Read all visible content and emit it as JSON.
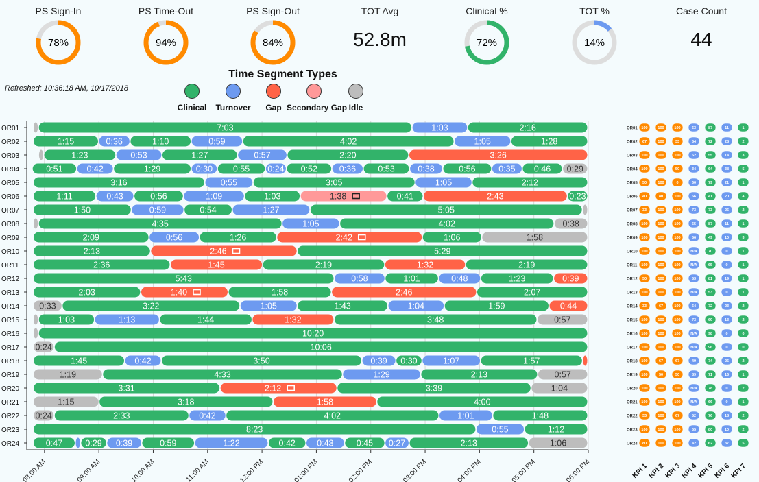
{
  "kpis": [
    {
      "label": "PS Sign-In",
      "value": "78%",
      "pct": 78,
      "color": "#ff8a00",
      "kind": "donut"
    },
    {
      "label": "PS Time-Out",
      "value": "94%",
      "pct": 94,
      "color": "#ff8a00",
      "kind": "donut"
    },
    {
      "label": "PS Sign-Out",
      "value": "84%",
      "pct": 84,
      "color": "#ff8a00",
      "kind": "donut"
    },
    {
      "label": "TOT Avg",
      "value": "52.8m",
      "kind": "text"
    },
    {
      "label": "Clinical %",
      "value": "72%",
      "pct": 72,
      "color": "#32b36a",
      "kind": "donut"
    },
    {
      "label": "TOT %",
      "value": "14%",
      "pct": 14,
      "color": "#6d9af0",
      "kind": "donut"
    },
    {
      "label": "Case Count",
      "value": "44",
      "kind": "text"
    }
  ],
  "refreshed": "Refreshed: 10:36:18 AM, 10/17/2018",
  "legend": {
    "title": "Time Segment Types",
    "items": [
      {
        "label": "Clinical",
        "color": "#32b36a"
      },
      {
        "label": "Turnover",
        "color": "#6d9af0"
      },
      {
        "label": "Gap",
        "color": "#ff6347"
      },
      {
        "label": "Secondary Gap",
        "color": "#ff9999"
      },
      {
        "label": "Idle",
        "color": "#bdbdbd"
      }
    ]
  },
  "colors": {
    "C": "#32b36a",
    "T": "#6d9af0",
    "G": "#ff6347",
    "S": "#ff9999",
    "I": "#bdbdbd",
    "orange": "#ff8a00",
    "green": "#32b36a",
    "blue": "#6d9af0"
  },
  "chart_data": {
    "type": "gantt",
    "x_ticks": [
      "08:00 AM",
      "09:00 AM",
      "10:00 AM",
      "11:00 AM",
      "12:00 PM",
      "01:00 PM",
      "02:00 PM",
      "03:00 PM",
      "04:00 PM",
      "05:00 PM",
      "06:00 PM"
    ],
    "rows": [
      {
        "room": "OR01",
        "start": "07:48",
        "segs": [
          [
            "I",
            ""
          ],
          [
            "C",
            "7:03"
          ],
          [
            "T",
            "1:03"
          ],
          [
            "C",
            "2:16"
          ]
        ]
      },
      {
        "room": "OR02",
        "start": "07:48",
        "segs": [
          [
            "C",
            "1:15"
          ],
          [
            "T",
            "0:36"
          ],
          [
            "C",
            "1:10"
          ],
          [
            "T",
            "0:59"
          ],
          [
            "C",
            "4:02"
          ],
          [
            "T",
            "1:05"
          ],
          [
            "C",
            "1:28"
          ]
        ]
      },
      {
        "room": "OR03",
        "start": "07:54",
        "segs": [
          [
            "I",
            ""
          ],
          [
            "C",
            "1:23"
          ],
          [
            "T",
            "0:53"
          ],
          [
            "C",
            "1:27"
          ],
          [
            "T",
            "0:57"
          ],
          [
            "C",
            "2:20"
          ],
          [
            "G",
            "3:26"
          ]
        ]
      },
      {
        "room": "OR04",
        "start": "07:47",
        "segs": [
          [
            "C",
            "0:51"
          ],
          [
            "T",
            "0:42"
          ],
          [
            "C",
            "1:29"
          ],
          [
            "T",
            "0:30"
          ],
          [
            "C",
            "0:55"
          ],
          [
            "T",
            "0:24"
          ],
          [
            "C",
            "0:52"
          ],
          [
            "T",
            "0:36"
          ],
          [
            "C",
            "0:53"
          ],
          [
            "T",
            "0:38"
          ],
          [
            "C",
            "0:56"
          ],
          [
            "T",
            "0:35"
          ],
          [
            "C",
            "0:46"
          ],
          [
            "I",
            "0:29"
          ]
        ]
      },
      {
        "room": "OR05",
        "start": "07:48",
        "segs": [
          [
            "C",
            "3:16"
          ],
          [
            "T",
            "0:55"
          ],
          [
            "C",
            "3:05"
          ],
          [
            "T",
            "1:05"
          ],
          [
            "C",
            "2:12"
          ]
        ]
      },
      {
        "room": "OR06",
        "start": "07:48",
        "segs": [
          [
            "C",
            "1:11"
          ],
          [
            "T",
            "0:43"
          ],
          [
            "C",
            "0:56"
          ],
          [
            "T",
            "1:09"
          ],
          [
            "C",
            "1:03"
          ],
          [
            "S",
            "1:38",
            true
          ],
          [
            "C",
            "0:41"
          ],
          [
            "G",
            "2:43"
          ],
          [
            "C",
            "0:23"
          ]
        ]
      },
      {
        "room": "OR07",
        "start": "07:48",
        "segs": [
          [
            "C",
            "1:50"
          ],
          [
            "T",
            "0:59"
          ],
          [
            "C",
            "0:54"
          ],
          [
            "T",
            "1:27"
          ],
          [
            "C",
            "5:05"
          ],
          [
            "I",
            ""
          ]
        ]
      },
      {
        "room": "OR08",
        "start": "07:48",
        "segs": [
          [
            "I",
            ""
          ],
          [
            "C",
            "4:35"
          ],
          [
            "T",
            "1:05"
          ],
          [
            "C",
            "4:02"
          ],
          [
            "I",
            "0:38"
          ]
        ]
      },
      {
        "room": "OR09",
        "start": "07:48",
        "segs": [
          [
            "C",
            "2:09"
          ],
          [
            "T",
            "0:56"
          ],
          [
            "C",
            "1:26"
          ],
          [
            "G",
            "2:42",
            true
          ],
          [
            "C",
            "1:06"
          ],
          [
            "I",
            "1:58"
          ]
        ]
      },
      {
        "room": "OR10",
        "start": "07:48",
        "segs": [
          [
            "C",
            "2:13"
          ],
          [
            "G",
            "2:46",
            true
          ],
          [
            "C",
            "5:29"
          ]
        ]
      },
      {
        "room": "OR11",
        "start": "07:48",
        "segs": [
          [
            "C",
            "2:36"
          ],
          [
            "G",
            "1:45"
          ],
          [
            "C",
            "2:19"
          ],
          [
            "G",
            "1:32"
          ],
          [
            "C",
            "2:19"
          ]
        ]
      },
      {
        "room": "OR12",
        "start": "07:48",
        "segs": [
          [
            "C",
            "5:43"
          ],
          [
            "T",
            "0:58"
          ],
          [
            "C",
            "1:01"
          ],
          [
            "T",
            "0:48"
          ],
          [
            "C",
            "1:23"
          ],
          [
            "G",
            "0:39"
          ]
        ]
      },
      {
        "room": "OR13",
        "start": "07:48",
        "segs": [
          [
            "C",
            "2:03"
          ],
          [
            "G",
            "1:40",
            true
          ],
          [
            "C",
            "1:58"
          ],
          [
            "G",
            "2:46"
          ],
          [
            "C",
            "2:07"
          ]
        ]
      },
      {
        "room": "OR14",
        "start": "07:48",
        "segs": [
          [
            "I",
            "0:33"
          ],
          [
            "C",
            "3:22"
          ],
          [
            "T",
            "1:05"
          ],
          [
            "C",
            "1:43"
          ],
          [
            "T",
            "1:04"
          ],
          [
            "C",
            "1:59"
          ],
          [
            "G",
            "0:44"
          ]
        ]
      },
      {
        "room": "OR15",
        "start": "07:48",
        "segs": [
          [
            "I",
            ""
          ],
          [
            "C",
            "1:03"
          ],
          [
            "T",
            "1:13"
          ],
          [
            "C",
            "1:44"
          ],
          [
            "G",
            "1:32"
          ],
          [
            "C",
            "3:48"
          ],
          [
            "I",
            "0:57"
          ]
        ]
      },
      {
        "room": "OR16",
        "start": "07:48",
        "segs": [
          [
            "I",
            ""
          ],
          [
            "C",
            "10:20"
          ]
        ]
      },
      {
        "room": "OR17",
        "start": "07:48",
        "segs": [
          [
            "I",
            "0:24"
          ],
          [
            "C",
            "10:06"
          ]
        ]
      },
      {
        "room": "OR18",
        "start": "07:48",
        "segs": [
          [
            "C",
            "1:45"
          ],
          [
            "T",
            "0:42"
          ],
          [
            "C",
            "3:50"
          ],
          [
            "T",
            "0:39"
          ],
          [
            "C",
            "0:30"
          ],
          [
            "T",
            "1:07"
          ],
          [
            "C",
            "1:57"
          ],
          [
            "G",
            ""
          ]
        ]
      },
      {
        "room": "OR19",
        "start": "07:48",
        "segs": [
          [
            "I",
            "1:19"
          ],
          [
            "C",
            "4:33"
          ],
          [
            "T",
            "1:29"
          ],
          [
            "C",
            "2:13"
          ],
          [
            "I",
            "0:57"
          ]
        ]
      },
      {
        "room": "OR20",
        "start": "07:48",
        "segs": [
          [
            "C",
            "3:31"
          ],
          [
            "G",
            "2:12",
            true
          ],
          [
            "C",
            "3:39"
          ],
          [
            "I",
            "1:04"
          ]
        ]
      },
      {
        "room": "OR21",
        "start": "07:48",
        "segs": [
          [
            "I",
            "1:15"
          ],
          [
            "C",
            "3:18"
          ],
          [
            "G",
            "1:58"
          ],
          [
            "C",
            "4:00"
          ]
        ]
      },
      {
        "room": "OR22",
        "start": "07:48",
        "segs": [
          [
            "I",
            "0:24"
          ],
          [
            "C",
            "2:33"
          ],
          [
            "T",
            "0:42"
          ],
          [
            "C",
            "4:02"
          ],
          [
            "T",
            "1:01"
          ],
          [
            "C",
            "1:48"
          ]
        ]
      },
      {
        "room": "OR23",
        "start": "07:48",
        "segs": [
          [
            "C",
            "8:23"
          ],
          [
            "T",
            "0:55"
          ],
          [
            "C",
            "1:12"
          ]
        ]
      },
      {
        "room": "OR24",
        "start": "07:48",
        "segs": [
          [
            "C",
            "0:47"
          ],
          [
            "T",
            ""
          ],
          [
            "C",
            "0:29"
          ],
          [
            "T",
            "0:39"
          ],
          [
            "C",
            "0:59"
          ],
          [
            "T",
            "1:22"
          ],
          [
            "C",
            "0:42"
          ],
          [
            "T",
            "0:43"
          ],
          [
            "C",
            "0:45"
          ],
          [
            "T",
            "0:27"
          ],
          [
            "C",
            "2:13"
          ],
          [
            "I",
            "1:06"
          ]
        ]
      }
    ]
  },
  "kpi_grid": {
    "columns": [
      "KPI 1",
      "KPI 2",
      "KPI 3",
      "KPI 4",
      "KPI 5",
      "KPI 6",
      "KPI 7"
    ],
    "col_colors": [
      "orange",
      "orange",
      "orange",
      "blue",
      "green",
      "blue",
      "green"
    ],
    "rows": [
      {
        "id": "OR01",
        "values": [
          "100",
          "100",
          "100",
          "63",
          "87",
          "11",
          "1"
        ]
      },
      {
        "id": "OR02",
        "values": [
          "67",
          "100",
          "33",
          "54",
          "72",
          "28",
          "2"
        ]
      },
      {
        "id": "OR03",
        "values": [
          "100",
          "100",
          "100",
          "52",
          "55",
          "14",
          "3"
        ]
      },
      {
        "id": "OR04",
        "values": [
          "100",
          "100",
          "50",
          "34",
          "64",
          "38",
          "5"
        ]
      },
      {
        "id": "OR05",
        "values": [
          "50",
          "100",
          "0",
          "60",
          "79",
          "21",
          "1"
        ]
      },
      {
        "id": "OR06",
        "values": [
          "40",
          "80",
          "100",
          "56",
          "41",
          "20",
          "4"
        ]
      },
      {
        "id": "OR07",
        "values": [
          "33",
          "100",
          "100",
          "73",
          "73",
          "26",
          "2"
        ]
      },
      {
        "id": "OR08",
        "values": [
          "100",
          "100",
          "100",
          "65",
          "87",
          "11",
          "1"
        ]
      },
      {
        "id": "OR09",
        "values": [
          "100",
          "100",
          "100",
          "56",
          "49",
          "10",
          "3"
        ]
      },
      {
        "id": "OR10",
        "values": [
          "100",
          "100",
          "100",
          "N/A",
          "70",
          "0",
          "1"
        ]
      },
      {
        "id": "OR11",
        "values": [
          "100",
          "100",
          "100",
          "N/A",
          "65",
          "0",
          "1"
        ]
      },
      {
        "id": "OR12",
        "values": [
          "50",
          "100",
          "100",
          "53",
          "81",
          "19",
          "1"
        ]
      },
      {
        "id": "OR13",
        "values": [
          "100",
          "100",
          "100",
          "N/A",
          "53",
          "0",
          "1"
        ]
      },
      {
        "id": "OR14",
        "values": [
          "33",
          "67",
          "100",
          "64",
          "72",
          "23",
          "2"
        ]
      },
      {
        "id": "OR15",
        "values": [
          "100",
          "100",
          "100",
          "73",
          "69",
          "13",
          "2"
        ]
      },
      {
        "id": "OR16",
        "values": [
          "100",
          "100",
          "100",
          "N/A",
          "98",
          "0",
          "0"
        ]
      },
      {
        "id": "OR17",
        "values": [
          "100",
          "100",
          "100",
          "N/A",
          "96",
          "0",
          "0"
        ]
      },
      {
        "id": "OR18",
        "values": [
          "100",
          "67",
          "67",
          "49",
          "74",
          "26",
          "2"
        ]
      },
      {
        "id": "OR19",
        "values": [
          "100",
          "50",
          "50",
          "89",
          "71",
          "16",
          "1"
        ]
      },
      {
        "id": "OR20",
        "values": [
          "100",
          "100",
          "100",
          "N/A",
          "78",
          "0",
          "2"
        ]
      },
      {
        "id": "OR21",
        "values": [
          "100",
          "100",
          "100",
          "N/A",
          "66",
          "0",
          "1"
        ]
      },
      {
        "id": "OR22",
        "values": [
          "33",
          "100",
          "67",
          "52",
          "76",
          "18",
          "2"
        ]
      },
      {
        "id": "OR23",
        "values": [
          "100",
          "100",
          "100",
          "55",
          "80",
          "10",
          "2"
        ]
      },
      {
        "id": "OR24",
        "values": [
          "80",
          "100",
          "100",
          "42",
          "62",
          "37",
          "5"
        ]
      }
    ]
  }
}
